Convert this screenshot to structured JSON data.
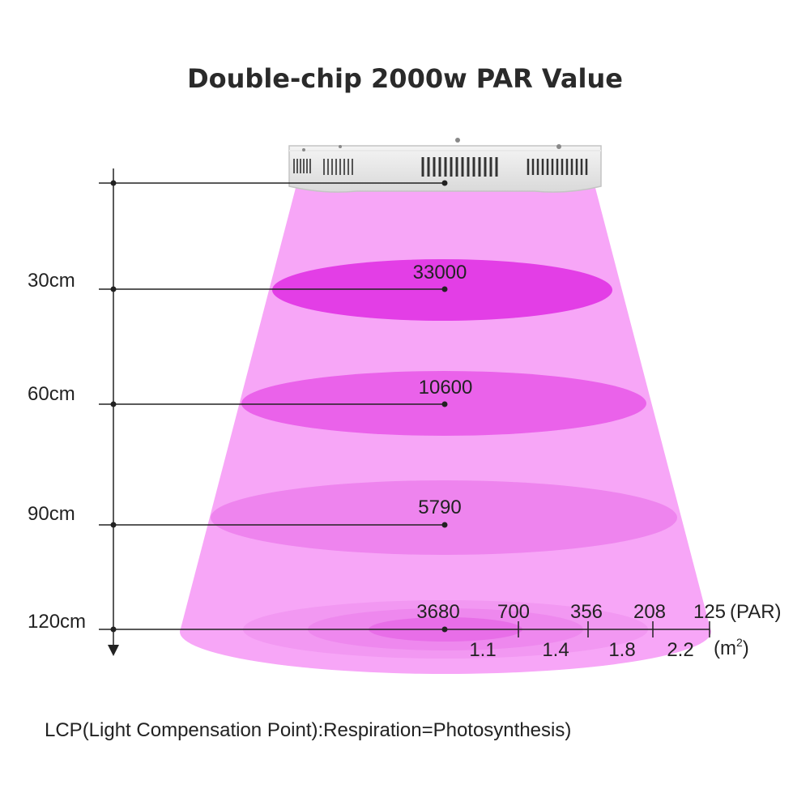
{
  "title": "Double-chip 2000w PAR Value",
  "distances": [
    "30cm",
    "60cm",
    "90cm",
    "120cm"
  ],
  "par_center_values": [
    "33000",
    "10600",
    "5790",
    "3680"
  ],
  "bottom_par_values": [
    "700",
    "356",
    "208",
    "125"
  ],
  "bottom_par_unit": "(PAR)",
  "area_values": [
    "1.1",
    "1.4",
    "1.8",
    "2.2"
  ],
  "area_unit_base": "(m",
  "area_unit_sup": "2",
  "area_unit_close": ")",
  "footnote": "LCP(Light Compensation Point):Respiration=Photosynthesis)",
  "colors": {
    "beam": "#f7a6f7",
    "band1": "#e33ee6",
    "band2": "#ea62ea",
    "band3": "#ee84ee",
    "axis": "#222222"
  }
}
